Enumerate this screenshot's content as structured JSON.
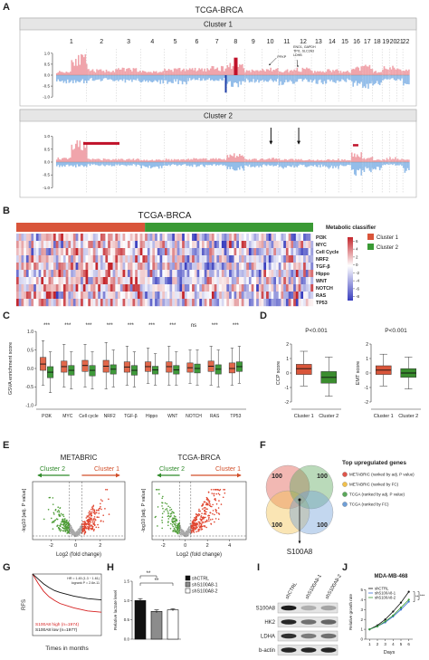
{
  "A": {
    "label": "A",
    "title": "TCGA-BRCA",
    "chromosomes": [
      "1",
      "2",
      "3",
      "4",
      "5",
      "6",
      "7",
      "8",
      "9",
      "10",
      "11",
      "12",
      "13",
      "14",
      "15",
      "16",
      "17",
      "18",
      "19",
      "20",
      "21",
      "22"
    ],
    "ylim": [
      -1.2,
      1.2
    ],
    "yticks": [
      {
        "value": 1,
        "label": "1.0"
      },
      {
        "value": 0.5,
        "label": "0.5"
      },
      {
        "value": 0,
        "label": "0.0"
      },
      {
        "value": -0.5,
        "label": "-0.5"
      },
      {
        "value": -1,
        "label": "-1.0"
      }
    ],
    "clusters": [
      {
        "title": "Cluster 1",
        "annotations": [
          "PFKP",
          "ENO1, GAPDH",
          "TPI1, SLC2A3",
          "LDHB"
        ]
      },
      {
        "title": "Cluster 2"
      }
    ]
  },
  "B": {
    "label": "B",
    "title": "TCGA-BRCA",
    "legend_title": "Metabolic classifier",
    "groups": [
      {
        "name": "Cluster 1",
        "color": "#d9553a"
      },
      {
        "name": "Cluster 2",
        "color": "#3a9a35"
      }
    ],
    "rows": [
      "PI3K",
      "MYC",
      "Cell Cycle",
      "NRF2",
      "TGF-β",
      "Hippo",
      "WNT",
      "NOTCH",
      "RAS",
      "TP53"
    ],
    "colorbar_lim": [
      -9,
      7
    ],
    "colorbar_ticks": [
      6,
      4,
      2,
      0,
      -2,
      -4,
      -6,
      -8
    ]
  },
  "C": {
    "label": "C",
    "ylabel": "GSVA enrichment score",
    "ylim": [
      -1.1,
      1.1
    ],
    "yticks": [
      {
        "value": 1,
        "label": "1.0"
      },
      {
        "value": 0.5,
        "label": "0.5"
      },
      {
        "value": 0,
        "label": "0.0"
      },
      {
        "value": -0.5,
        "label": "-0.5"
      },
      {
        "value": -1,
        "label": "-1.0"
      }
    ],
    "categories": [
      "PI3K",
      "MYC",
      "Cell cycle",
      "NRF2",
      "TGF-β",
      "Hippo",
      "WNT",
      "NOTCH",
      "RAS",
      "TP53"
    ],
    "significance": [
      "***",
      "***",
      "***",
      "***",
      "***",
      "***",
      "***",
      "ns",
      "***",
      "***"
    ],
    "series": [
      {
        "color": "#e2674a",
        "median": [
          0.12,
          0.05,
          0.08,
          0.06,
          0.04,
          0.05,
          0.05,
          0.02,
          0.06,
          0.0
        ],
        "q1": [
          -0.05,
          -0.1,
          -0.08,
          -0.1,
          -0.1,
          -0.08,
          -0.1,
          -0.1,
          -0.08,
          -0.12
        ],
        "q3": [
          0.3,
          0.2,
          0.22,
          0.22,
          0.18,
          0.18,
          0.18,
          0.15,
          0.2,
          0.15
        ],
        "low": [
          -0.45,
          -0.5,
          -0.5,
          -0.55,
          -0.45,
          -0.4,
          -0.45,
          -0.4,
          -0.45,
          -0.45
        ],
        "high": [
          0.75,
          0.65,
          0.65,
          0.7,
          0.6,
          0.55,
          0.6,
          0.5,
          0.6,
          0.55
        ]
      },
      {
        "color": "#3f9a3a",
        "median": [
          -0.1,
          -0.05,
          -0.05,
          -0.02,
          -0.05,
          -0.04,
          -0.04,
          0.0,
          -0.02,
          0.05
        ],
        "q1": [
          -0.25,
          -0.18,
          -0.2,
          -0.15,
          -0.18,
          -0.15,
          -0.15,
          -0.12,
          -0.15,
          -0.08
        ],
        "q3": [
          0.05,
          0.08,
          0.08,
          0.1,
          0.08,
          0.06,
          0.08,
          0.12,
          0.1,
          0.18
        ],
        "low": [
          -0.65,
          -0.55,
          -0.55,
          -0.5,
          -0.5,
          -0.45,
          -0.45,
          -0.45,
          -0.5,
          -0.4
        ],
        "high": [
          0.45,
          0.45,
          0.45,
          0.5,
          0.45,
          0.4,
          0.45,
          0.5,
          0.5,
          0.6
        ]
      }
    ]
  },
  "D": {
    "label": "D",
    "categories": [
      "Cluster 1",
      "Cluster 2"
    ],
    "plots": [
      {
        "ylabel": "CCP score",
        "pvalue": "P<0.001",
        "ylim": [
          -2.5,
          2.5
        ],
        "yticks": [
          2,
          1,
          0,
          -1,
          -2
        ],
        "boxes": [
          {
            "color": "#d9553a",
            "median": 0.3,
            "q1": -0.1,
            "q3": 0.6,
            "low": -0.9,
            "high": 1.5
          },
          {
            "color": "#3a8d2e",
            "median": -0.3,
            "q1": -0.7,
            "q3": 0.1,
            "low": -1.6,
            "high": 1.1
          }
        ]
      },
      {
        "ylabel": "EMT score",
        "pvalue": "P<0.001",
        "ylim": [
          -2.5,
          2.5
        ],
        "yticks": [
          2,
          1,
          0,
          -1,
          -2
        ],
        "boxes": [
          {
            "color": "#d9553a",
            "median": 0.2,
            "q1": -0.1,
            "q3": 0.5,
            "low": -0.9,
            "high": 1.3
          },
          {
            "color": "#3a8d2e",
            "median": 0.0,
            "q1": -0.3,
            "q3": 0.3,
            "low": -1.1,
            "high": 1.1
          }
        ]
      }
    ]
  },
  "E": {
    "label": "E",
    "xlabel": "Log2 (fold change)",
    "ylabel": "-log10 [adj. P value]",
    "plots": [
      {
        "title": "METABRIC",
        "left_label": "Cluster 2",
        "right_label": "Cluster 1",
        "xlim": [
          -3.5,
          4
        ],
        "xticks": [
          -2,
          0,
          2
        ]
      },
      {
        "title": "TCGA-BRCA",
        "left_label": "Cluster 2",
        "right_label": "Cluster 1",
        "xlim": [
          -3,
          5.5
        ],
        "xticks": [
          -2,
          0,
          2,
          4
        ]
      }
    ]
  },
  "F": {
    "label": "F",
    "legend_title": "Top upregulated genes",
    "gene": "S100A8",
    "sets": [
      {
        "name": "METABRIC (ranked by adj. P value)",
        "color": "#e0554a",
        "count": "100"
      },
      {
        "name": "METABRIC (ranked by FC)",
        "color": "#f2c14c",
        "count": "100"
      },
      {
        "name": "TCGA (ranked by adj. P value)",
        "color": "#5aa85a",
        "count": "100"
      },
      {
        "name": "TCGA (ranked by FC)",
        "color": "#6f9fd8",
        "count": "100"
      }
    ]
  },
  "G": {
    "label": "G",
    "ylabel": "RFS",
    "xlabel": "Times in months",
    "stats": [
      "HR = 1.45 (1.3 − 1.61)",
      "logrank P = 2.6e-11"
    ],
    "xlim": [
      0,
      250
    ],
    "ylim": [
      0,
      1
    ],
    "x": [
      0,
      20,
      40,
      60,
      80,
      100,
      150,
      200,
      250
    ],
    "series": [
      {
        "name": "S100A8 high (n=1974)",
        "color": "#d62020",
        "values": [
          1,
          0.85,
          0.72,
          0.63,
          0.57,
          0.52,
          0.45,
          0.4,
          0.38
        ]
      },
      {
        "name": "S100A8 low (n=1977)",
        "color": "#111111",
        "values": [
          1,
          0.92,
          0.84,
          0.78,
          0.73,
          0.7,
          0.64,
          0.6,
          0.58
        ]
      }
    ]
  },
  "H": {
    "label": "H",
    "ylabel": "Relative lactate level",
    "ylim": [
      0,
      1.5
    ],
    "yticks": [
      {
        "value": 0,
        "label": "0.0"
      },
      0.5,
      {
        "value": 1,
        "label": "1.0"
      },
      1.5
    ],
    "significance": [
      "**",
      "**"
    ],
    "bars": [
      {
        "name": "shCTRL",
        "color": "#111111",
        "value": 1.0,
        "error": 0.05
      },
      {
        "name": "shS100A8-1",
        "color": "#8c8c8c",
        "value": 0.72,
        "error": 0.04
      },
      {
        "name": "shS100A8-2",
        "color": "#ffffff",
        "value": 0.76,
        "error": 0.03
      }
    ]
  },
  "I": {
    "label": "I",
    "lanes": [
      "shCTRL",
      "shS100A8-1",
      "shS100A8-2"
    ],
    "proteins": [
      "S100A8",
      "HK2",
      "LDHA",
      "b-actin"
    ]
  },
  "J": {
    "label": "J",
    "title": "MDA-MB-468",
    "xlabel": "Days",
    "ylabel": "Relative growth rate",
    "x": [
      1,
      2,
      3,
      4,
      5,
      6
    ],
    "xlim": [
      0.5,
      6.5
    ],
    "xticks": [
      1,
      2,
      3,
      4,
      5,
      6
    ],
    "ylim": [
      0,
      5.5
    ],
    "yticks": [
      0,
      1,
      2,
      3,
      4,
      5
    ],
    "significance": [
      "**",
      "***"
    ],
    "series": [
      {
        "name": "shCTRL",
        "color": "#111111",
        "values": [
          1,
          1.4,
          2.0,
          2.8,
          3.7,
          4.8
        ]
      },
      {
        "name": "shS100A8-1",
        "color": "#3a6fd8",
        "values": [
          1,
          1.3,
          1.7,
          2.3,
          3.0,
          3.8
        ]
      },
      {
        "name": "shS100A8-2",
        "color": "#3a9a35",
        "values": [
          1,
          1.3,
          1.8,
          2.4,
          3.2,
          4.0
        ]
      }
    ]
  }
}
